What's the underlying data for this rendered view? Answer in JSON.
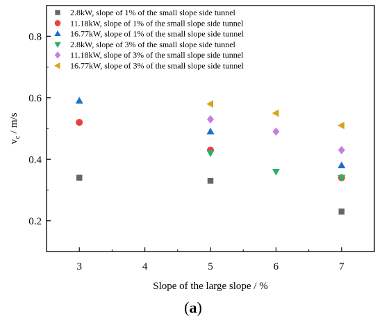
{
  "chart_data": {
    "type": "scatter",
    "xlabel": "Slope of the large slope  / %",
    "ylabel": "v",
    "ylabel_sub": "c",
    "ylabel_unit": " / m/s",
    "panel_label_open": "(",
    "panel_label_letter": "a",
    "panel_label_close": ")",
    "xlim": [
      2.5,
      7.5
    ],
    "ylim": [
      0.1,
      0.9
    ],
    "xticks": [
      3,
      4,
      5,
      6,
      7
    ],
    "yticks": [
      0.2,
      0.4,
      0.6,
      0.8
    ],
    "xtick_labels": [
      "3",
      "4",
      "5",
      "6",
      "7"
    ],
    "ytick_labels": [
      "0.2",
      "0.4",
      "0.6",
      "0.8"
    ],
    "legend_position": "top-left",
    "series": [
      {
        "name": "2.8kW, slope of 1% of the small slope side tunnel",
        "marker": "square",
        "color": "#666666",
        "points": [
          {
            "x": 3,
            "y": 0.34
          },
          {
            "x": 5,
            "y": 0.33
          },
          {
            "x": 7,
            "y": 0.23
          }
        ]
      },
      {
        "name": "11.18kW, slope of 1% of the small slope side tunnel",
        "marker": "circle",
        "color": "#e8413a",
        "points": [
          {
            "x": 3,
            "y": 0.52
          },
          {
            "x": 5,
            "y": 0.43
          },
          {
            "x": 7,
            "y": 0.34
          }
        ]
      },
      {
        "name": "16.77kW, slope of 1% of the small slope side tunnel",
        "marker": "triangle-up",
        "color": "#1f6fcc",
        "points": [
          {
            "x": 3,
            "y": 0.59
          },
          {
            "x": 5,
            "y": 0.49
          },
          {
            "x": 7,
            "y": 0.38
          }
        ]
      },
      {
        "name": "2.8kW, slope of 3% of the small slope side tunnel",
        "marker": "triangle-down",
        "color": "#26b26b",
        "points": [
          {
            "x": 5,
            "y": 0.42
          },
          {
            "x": 6,
            "y": 0.36
          },
          {
            "x": 7,
            "y": 0.34
          }
        ]
      },
      {
        "name": "11.18kW, slope of 3% of the small slope side tunnel",
        "marker": "diamond",
        "color": "#c77de0",
        "points": [
          {
            "x": 5,
            "y": 0.53
          },
          {
            "x": 6,
            "y": 0.49
          },
          {
            "x": 7,
            "y": 0.43
          }
        ]
      },
      {
        "name": "16.77kW, slope of 3% of the small slope side tunnel",
        "marker": "triangle-left",
        "color": "#d9a31a",
        "points": [
          {
            "x": 5,
            "y": 0.58
          },
          {
            "x": 6,
            "y": 0.55
          },
          {
            "x": 7,
            "y": 0.51
          }
        ]
      }
    ]
  }
}
